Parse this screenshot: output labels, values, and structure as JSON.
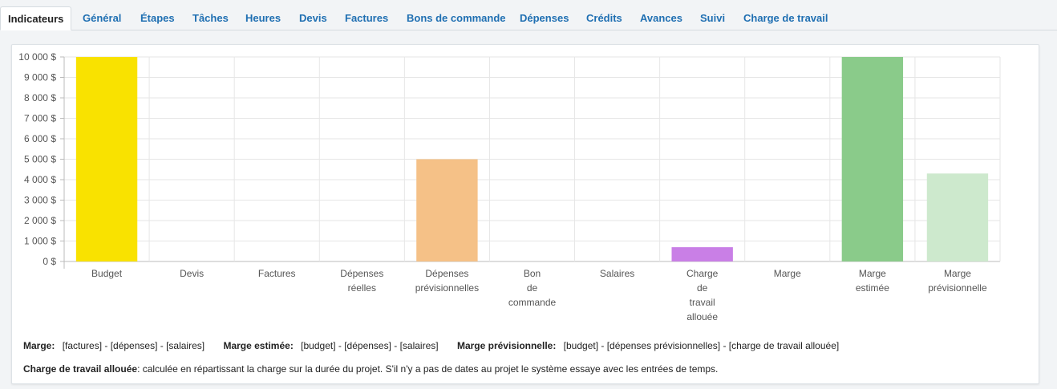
{
  "tabs": [
    {
      "label": "Indicateurs",
      "active": true
    },
    {
      "label": "Général"
    },
    {
      "label": "Étapes"
    },
    {
      "label": "Tâches"
    },
    {
      "label": "Heures"
    },
    {
      "label": "Devis"
    },
    {
      "label": "Factures"
    },
    {
      "label": "Bons de commande"
    },
    {
      "label": "Dépenses"
    },
    {
      "label": "Crédits"
    },
    {
      "label": "Avances"
    },
    {
      "label": "Suivi"
    },
    {
      "label": "Charge de travail"
    }
  ],
  "chart_data": {
    "type": "bar",
    "categories": [
      [
        "Budget"
      ],
      [
        "Devis"
      ],
      [
        "Factures"
      ],
      [
        "Dépenses",
        "réelles"
      ],
      [
        "Dépenses",
        "prévisionnelles"
      ],
      [
        "Bon",
        "de",
        "commande"
      ],
      [
        "Salaires"
      ],
      [
        "Charge",
        "de",
        "travail",
        "allouée"
      ],
      [
        "Marge"
      ],
      [
        "Marge",
        "estimée"
      ],
      [
        "Marge",
        "prévisionnelle"
      ]
    ],
    "values": [
      10000,
      0,
      0,
      0,
      5000,
      0,
      0,
      700,
      0,
      10000,
      4300
    ],
    "colors": [
      "#f9e200",
      "#cccccc",
      "#cccccc",
      "#cccccc",
      "#f5c187",
      "#cccccc",
      "#cccccc",
      "#c97fe6",
      "#cccccc",
      "#8acb8a",
      "#cde9cd"
    ],
    "ylim": [
      0,
      10000
    ],
    "yticks": [
      "0 $",
      "1 000 $",
      "2 000 $",
      "3 000 $",
      "4 000 $",
      "5 000 $",
      "6 000 $",
      "7 000 $",
      "8 000 $",
      "9 000 $",
      "10 000 $"
    ],
    "grid": true
  },
  "legend": {
    "marge_label": "Marge:",
    "marge_formula": "[factures] - [dépenses] - [salaires]",
    "marge_estimee_label": "Marge estimée:",
    "marge_estimee_formula": "[budget] - [dépenses] - [salaires]",
    "marge_prev_label": "Marge prévisionnelle:",
    "marge_prev_formula": "[budget] - [dépenses prévisionnelles] - [charge de travail allouée]",
    "charge_label": "Charge de travail allouée",
    "charge_text": ": calculée en répartissant la charge sur la durée du projet. S'il n'y a pas de dates au projet le système essaye avec les entrées de temps."
  }
}
